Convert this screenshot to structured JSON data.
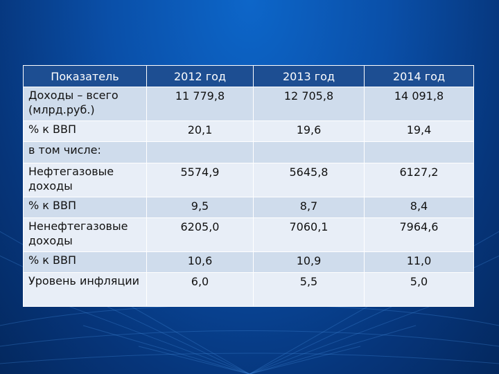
{
  "table": {
    "headers": [
      "Показатель",
      "2012 год",
      "2013 год",
      "2014 год"
    ],
    "rows": [
      {
        "label": "Доходы – всего (млрд.руб.)",
        "values": [
          "11 779,8",
          "12 705,8",
          "14 091,8"
        ]
      },
      {
        "label": "% к ВВП",
        "values": [
          "20,1",
          "19,6",
          "19,4"
        ]
      },
      {
        "label": "в том числе:",
        "values": [
          "",
          "",
          ""
        ]
      },
      {
        "label": "Нефтегазовые доходы",
        "values": [
          "5574,9",
          "5645,8",
          "6127,2"
        ]
      },
      {
        "label": "% к ВВП",
        "values": [
          "9,5",
          "8,7",
          "8,4"
        ]
      },
      {
        "label": "Ненефтегазовые доходы",
        "values": [
          "6205,0",
          "7060,1",
          "7964,6"
        ]
      },
      {
        "label": "% к ВВП",
        "values": [
          "10,6",
          "10,9",
          "11,0"
        ]
      },
      {
        "label": "Уровень инфляции",
        "values": [
          "6,0",
          "5,5",
          "5,0"
        ]
      }
    ]
  },
  "colors": {
    "background": "#0a4fa8",
    "header_bg": "#1d4e92",
    "row_odd": "#cfdcec",
    "row_even": "#e8eef7"
  }
}
